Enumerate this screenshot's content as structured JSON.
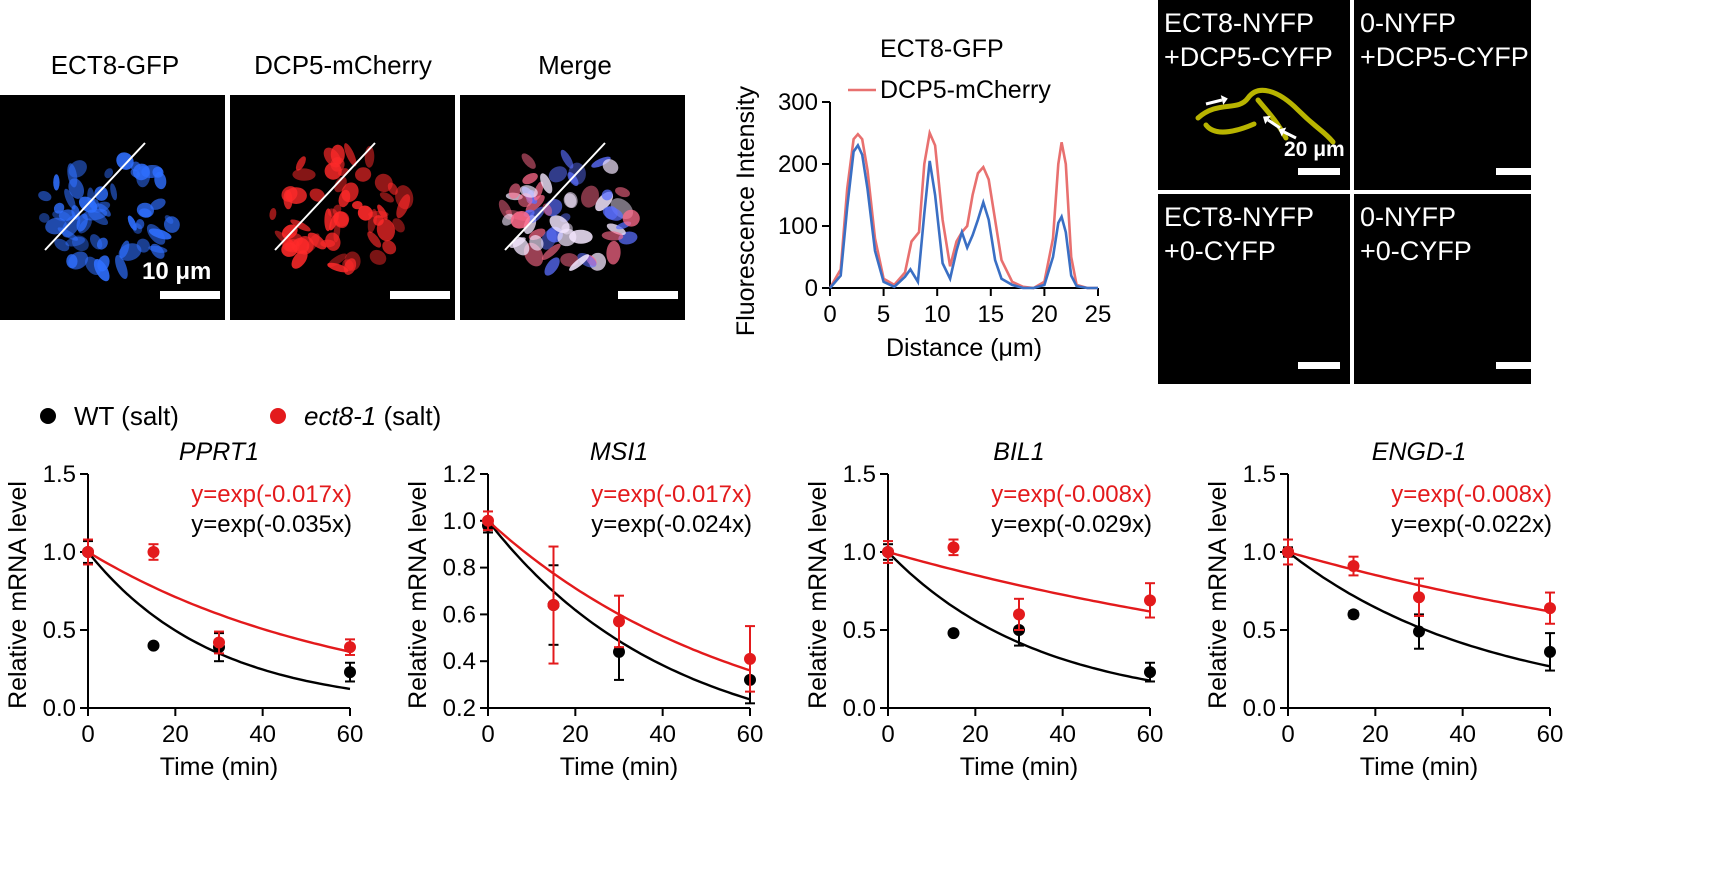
{
  "micrographs": [
    {
      "caption": "ECT8-GFP",
      "scale_label": "10 μm",
      "color": "#2f6fff"
    },
    {
      "caption": "DCP5-mCherry",
      "color": "#ff2a2a"
    },
    {
      "caption": "Merge",
      "color": "#ffd6e8"
    }
  ],
  "profile_chart": {
    "type": "line",
    "xlabel": "Distance (μm)",
    "ylabel": "Fluorescence Intensity",
    "xlim": [
      0,
      25
    ],
    "ylim": [
      0,
      300
    ],
    "xticks": [
      "0",
      "5",
      "10",
      "15",
      "20",
      "25"
    ],
    "yticks": [
      "0",
      "100",
      "200",
      "300"
    ],
    "series": [
      {
        "name": "ECT8-GFP",
        "color": "#3a6fc4",
        "x": [
          0,
          1,
          1.6,
          2.2,
          2.6,
          3.0,
          3.5,
          4.2,
          5,
          6,
          7,
          7.5,
          8.2,
          8.8,
          9.3,
          9.8,
          10.5,
          11.2,
          11.8,
          12.3,
          12.8,
          13.3,
          13.8,
          14.3,
          14.8,
          15.4,
          16,
          17,
          18,
          19,
          20,
          20.8,
          21.3,
          21.6,
          22.0,
          22.5,
          23,
          24,
          25
        ],
        "y": [
          0,
          20,
          130,
          220,
          230,
          215,
          160,
          60,
          10,
          2,
          18,
          30,
          10,
          120,
          205,
          150,
          40,
          15,
          60,
          90,
          65,
          85,
          110,
          138,
          110,
          45,
          15,
          5,
          0,
          0,
          5,
          50,
          105,
          115,
          90,
          20,
          3,
          0,
          0
        ]
      },
      {
        "name": "DCP5-mCherry",
        "color": "#e8706f",
        "x": [
          0,
          1,
          1.6,
          2.2,
          2.6,
          3.0,
          3.5,
          4.2,
          5,
          6,
          7,
          7.6,
          8.3,
          8.8,
          9.3,
          9.8,
          10.5,
          11.2,
          11.8,
          12.3,
          12.8,
          13.3,
          13.8,
          14.3,
          14.8,
          15.4,
          16,
          17,
          18,
          19,
          20,
          20.8,
          21.3,
          21.6,
          22.0,
          22.5,
          23,
          24,
          25
        ],
        "y": [
          0,
          30,
          160,
          240,
          248,
          240,
          190,
          80,
          15,
          5,
          25,
          75,
          90,
          200,
          250,
          230,
          110,
          35,
          75,
          90,
          100,
          150,
          185,
          195,
          175,
          110,
          45,
          10,
          2,
          0,
          10,
          80,
          200,
          235,
          200,
          50,
          5,
          0,
          0
        ]
      }
    ]
  },
  "bifc": {
    "scale_label": "20 μm",
    "panels": [
      {
        "line1": "ECT8-NYFP",
        "line2": "+DCP5-CYFP",
        "has_signal": true
      },
      {
        "line1": "0-NYFP",
        "line2": "+DCP5-CYFP",
        "has_signal": false
      },
      {
        "line1": "ECT8-NYFP",
        "line2": "+0-CYFP",
        "has_signal": false
      },
      {
        "line1": "0-NYFP",
        "line2": "+0-CYFP",
        "has_signal": false
      }
    ]
  },
  "decay_legend": [
    {
      "label_italic": "",
      "label": "WT (salt)",
      "color": "#000000"
    },
    {
      "label_italic": "ect8-1",
      "label": " (salt)",
      "color": "#e31a1c"
    }
  ],
  "chart_data": [
    {
      "type": "scatter",
      "title": "PPRT1",
      "xlabel": "Time (min)",
      "ylabel": "Relative mRNA level",
      "xlim": [
        0,
        60
      ],
      "ylim": [
        0,
        1.5
      ],
      "xticks": [
        "0",
        "20",
        "40",
        "60"
      ],
      "yticks": [
        "0.0",
        "0.5",
        "1.0",
        "1.5"
      ],
      "series": [
        {
          "name": "WT (salt)",
          "color": "#000000",
          "k": 0.035,
          "equation": "y=exp(-0.035x)",
          "points": [
            {
              "x": 0,
              "y": 1.0,
              "err": 0.07
            },
            {
              "x": 15,
              "y": 0.4,
              "err": 0.01
            },
            {
              "x": 30,
              "y": 0.39,
              "err": 0.09
            },
            {
              "x": 60,
              "y": 0.23,
              "err": 0.06
            }
          ]
        },
        {
          "name": "ect8-1 (salt)",
          "color": "#e31a1c",
          "k": 0.017,
          "equation": "y=exp(-0.017x)",
          "points": [
            {
              "x": 0,
              "y": 1.0,
              "err": 0.08
            },
            {
              "x": 15,
              "y": 1.0,
              "err": 0.05
            },
            {
              "x": 30,
              "y": 0.42,
              "err": 0.07
            },
            {
              "x": 60,
              "y": 0.39,
              "err": 0.05
            }
          ]
        }
      ]
    },
    {
      "type": "scatter",
      "title": "MSI1",
      "xlabel": "Time (min)",
      "ylabel": "Relative mRNA level",
      "xlim": [
        0,
        60
      ],
      "ylim": [
        0.2,
        1.2
      ],
      "xticks": [
        "0",
        "20",
        "40",
        "60"
      ],
      "yticks": [
        "0.2",
        "0.4",
        "0.6",
        "0.8",
        "1.0",
        "1.2"
      ],
      "series": [
        {
          "name": "WT (salt)",
          "color": "#000000",
          "k": 0.024,
          "equation": "y=exp(-0.024x)",
          "points": [
            {
              "x": 0,
              "y": 0.98,
              "err": 0.03
            },
            {
              "x": 15,
              "y": 0.64,
              "err": 0.17
            },
            {
              "x": 30,
              "y": 0.44,
              "err": 0.12
            },
            {
              "x": 60,
              "y": 0.32,
              "err": 0.1
            }
          ]
        },
        {
          "name": "ect8-1 (salt)",
          "color": "#e31a1c",
          "k": 0.017,
          "equation": "y=exp(-0.017x)",
          "points": [
            {
              "x": 0,
              "y": 1.0,
              "err": 0.04
            },
            {
              "x": 15,
              "y": 0.64,
              "err": 0.25
            },
            {
              "x": 30,
              "y": 0.57,
              "err": 0.11
            },
            {
              "x": 60,
              "y": 0.41,
              "err": 0.14
            }
          ]
        }
      ]
    },
    {
      "type": "scatter",
      "title": "BIL1",
      "xlabel": "Time (min)",
      "ylabel": "Relative mRNA level",
      "xlim": [
        0,
        60
      ],
      "ylim": [
        0,
        1.5
      ],
      "xticks": [
        "0",
        "20",
        "40",
        "60"
      ],
      "yticks": [
        "0.0",
        "0.5",
        "1.0",
        "1.5"
      ],
      "series": [
        {
          "name": "WT (salt)",
          "color": "#000000",
          "k": 0.029,
          "equation": "y=exp(-0.029x)",
          "points": [
            {
              "x": 0,
              "y": 1.0,
              "err": 0.05
            },
            {
              "x": 15,
              "y": 0.48,
              "err": 0.01
            },
            {
              "x": 30,
              "y": 0.5,
              "err": 0.1
            },
            {
              "x": 60,
              "y": 0.23,
              "err": 0.06
            }
          ]
        },
        {
          "name": "ect8-1 (salt)",
          "color": "#e31a1c",
          "k": 0.008,
          "equation": "y=exp(-0.008x)",
          "points": [
            {
              "x": 0,
              "y": 1.0,
              "err": 0.07
            },
            {
              "x": 15,
              "y": 1.03,
              "err": 0.05
            },
            {
              "x": 30,
              "y": 0.6,
              "err": 0.1
            },
            {
              "x": 60,
              "y": 0.69,
              "err": 0.11
            }
          ]
        }
      ]
    },
    {
      "type": "scatter",
      "title": "ENGD-1",
      "xlabel": "Time (min)",
      "ylabel": "Relative mRNA level",
      "xlim": [
        0,
        60
      ],
      "ylim": [
        0,
        1.5
      ],
      "xticks": [
        "0",
        "20",
        "40",
        "60"
      ],
      "yticks": [
        "0.0",
        "0.5",
        "1.0",
        "1.5"
      ],
      "series": [
        {
          "name": "WT (salt)",
          "color": "#000000",
          "k": 0.022,
          "equation": "y=exp(-0.022x)",
          "points": [
            {
              "x": 0,
              "y": 1.0,
              "err": 0.03
            },
            {
              "x": 15,
              "y": 0.6,
              "err": 0.02
            },
            {
              "x": 30,
              "y": 0.49,
              "err": 0.11
            },
            {
              "x": 60,
              "y": 0.36,
              "err": 0.12
            }
          ]
        },
        {
          "name": "ect8-1 (salt)",
          "color": "#e31a1c",
          "k": 0.008,
          "equation": "y=exp(-0.008x)",
          "points": [
            {
              "x": 0,
              "y": 1.0,
              "err": 0.08
            },
            {
              "x": 15,
              "y": 0.91,
              "err": 0.06
            },
            {
              "x": 30,
              "y": 0.71,
              "err": 0.12
            },
            {
              "x": 60,
              "y": 0.64,
              "err": 0.1
            }
          ]
        }
      ]
    }
  ]
}
